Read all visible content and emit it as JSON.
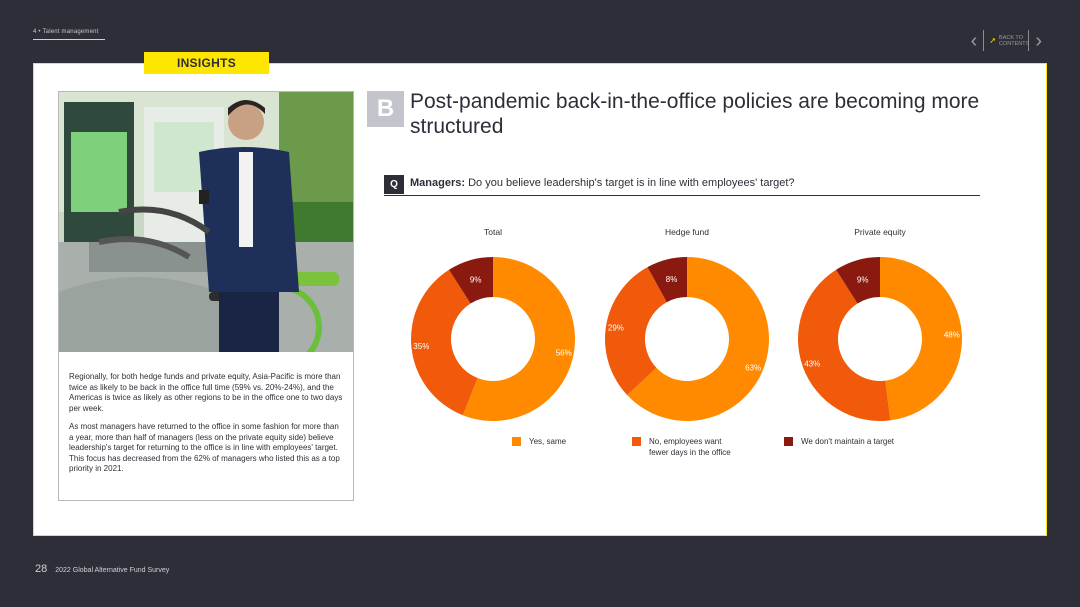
{
  "nav": {
    "section_label": "4 • Talent management",
    "back_label": "BACK TO CONTENTS"
  },
  "insights_tab": "INSIGHTS",
  "left": {
    "para1": "Regionally, for both hedge funds and private equity, Asia-Pacific is more than twice as likely to be back in the office full time (59% vs. 20%-24%), and the Americas is twice as likely as other regions to be in the office one to two days per week.",
    "para2": "As most managers have returned to the office in some fashion for more than a year, more than half of managers (less on the private equity side) believe leadership's target for returning to the office is in line with employees' target. This focus has decreased from the 62% of managers who listed this as a top priority in 2021."
  },
  "section": {
    "badge": "B",
    "headline": "Post-pandemic back-in-the-office policies are becoming more structured"
  },
  "question": {
    "badge": "Q",
    "lead": "Managers:",
    "text": " Do you believe leadership's target is in line with employees' target?"
  },
  "chart_data": {
    "type": "donut",
    "charts": [
      {
        "title": "Total",
        "values": [
          56,
          35,
          9
        ],
        "labels": [
          "56%",
          "35%",
          "9%"
        ]
      },
      {
        "title": "Hedge fund",
        "values": [
          63,
          29,
          8
        ],
        "labels": [
          "63%",
          "29%",
          "8%"
        ]
      },
      {
        "title": "Private equity",
        "values": [
          48,
          43,
          9
        ],
        "labels": [
          "48%",
          "43%",
          "9%"
        ]
      }
    ],
    "categories": [
      "Yes, same",
      "No, employees want fewer days in the office",
      "We don't maintain a target"
    ],
    "legend": [
      {
        "label_line1": "Yes, same",
        "label_line2": "",
        "color": "#ff8a00"
      },
      {
        "label_line1": "No, employees want",
        "label_line2": "fewer days in the office",
        "color": "#f05a0a"
      },
      {
        "label_line1": "We don't maintain a target",
        "label_line2": "",
        "color": "#8a1a10"
      }
    ]
  },
  "footer": {
    "page": "28",
    "title": "2022 Global Alternative Fund Survey"
  }
}
